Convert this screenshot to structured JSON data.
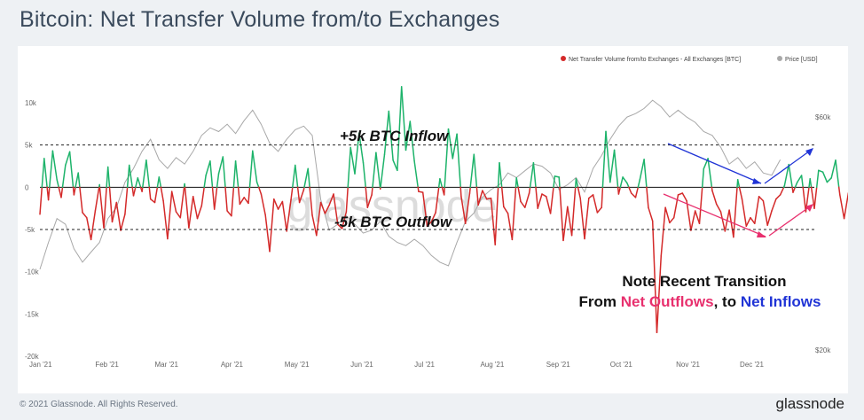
{
  "title": "Bitcoin: Net Transfer Volume from/to Exchanges",
  "footer": {
    "copyright": "© 2021 Glassnode. All Rights Reserved.",
    "brand": "glassnode"
  },
  "watermark": "glassnode",
  "colors": {
    "positive": "#1db36a",
    "negative": "#d42a2a",
    "price": "#a8a8a8",
    "pink": "#e8306e",
    "blue": "#2034d6",
    "text": "#3a4a5c"
  },
  "chart_data": {
    "type": "line",
    "title": "Bitcoin: Net Transfer Volume from/to Exchanges",
    "legend_position": "top-right",
    "legend": [
      {
        "label": "Net Transfer Volume from/to Exchanges - All Exchanges [BTC]",
        "color": "#d42a2a"
      },
      {
        "label": "Price [USD]",
        "color": "#a8a8a8"
      }
    ],
    "x_ticks": [
      "Jan '21",
      "Feb '21",
      "Mar '21",
      "Apr '21",
      "May '21",
      "Jun '21",
      "Jul '21",
      "Aug '21",
      "Sep '21",
      "Oct '21",
      "Nov '21",
      "Dec '21"
    ],
    "y_left": {
      "ticks": [
        "10k",
        "5k",
        "0",
        "-5k",
        "-10k",
        "-15k",
        "-20k"
      ],
      "range": [
        -20000,
        12000
      ]
    },
    "y_right": {
      "ticks": [
        "$60k",
        "$20k"
      ],
      "range": [
        20000,
        72000
      ],
      "scale": "log"
    },
    "reference_lines": [
      {
        "value": 5000,
        "label": "+5k BTC Inflow"
      },
      {
        "value": -5000,
        "label": "-5k BTC Outflow"
      }
    ],
    "annotation": {
      "line1": "Note Recent Transition",
      "line2_prefix": "From ",
      "line2_outflows": "Net Outflows",
      "line2_mid": ", to ",
      "line2_inflows": "Net Inflows"
    },
    "series": [
      {
        "name": "Net Transfer Volume from/to Exchanges - All Exchanges [BTC]",
        "start": "2021-01-01",
        "step_days": 2,
        "values": [
          -3200,
          3400,
          -1500,
          4300,
          900,
          -1200,
          2600,
          4200,
          -900,
          1700,
          -3000,
          -3600,
          -6200,
          -2800,
          300,
          -4800,
          2400,
          -4100,
          -1800,
          -5100,
          -3200,
          2600,
          -1000,
          1100,
          -500,
          3200,
          -1400,
          -1800,
          1200,
          -1600,
          -6100,
          -500,
          -2900,
          -3600,
          400,
          -4800,
          -1100,
          -3700,
          -2200,
          1400,
          3100,
          -2600,
          1600,
          3600,
          -2800,
          -3400,
          3100,
          -2000,
          -1200,
          -1900,
          4300,
          600,
          -800,
          -3300,
          -7600,
          -1400,
          -2600,
          -1700,
          -5200,
          -1500,
          2600,
          -1800,
          -300,
          2200,
          -3300,
          -5700,
          -1800,
          -3100,
          -2100,
          -800,
          -4400,
          -4900,
          -2900,
          4700,
          1600,
          6400,
          2900,
          -2400,
          -900,
          4100,
          -200,
          3900,
          9000,
          3200,
          2000,
          11900,
          4400,
          7800,
          3100,
          -500,
          -600,
          -4600,
          -4100,
          -3000,
          1000,
          -900,
          6900,
          3400,
          6300,
          -1100,
          -4300,
          -700,
          3900,
          -2100,
          -400,
          -1400,
          -1300,
          -6800,
          2900,
          -2300,
          -3100,
          -6200,
          1100,
          -1700,
          -2400,
          -700,
          2900,
          -2500,
          -800,
          -1100,
          -3100,
          1300,
          1200,
          -6300,
          -2300,
          -5700,
          1000,
          -1300,
          -6100,
          -1300,
          -900,
          -3000,
          -2400,
          6600,
          600,
          4400,
          -800,
          1200,
          500,
          -700,
          -1200,
          900,
          3300,
          -2400,
          -4000,
          -17200,
          -8100,
          -2400,
          -4200,
          -3600,
          -900,
          -700,
          -1600,
          -5100,
          -2800,
          -4300,
          2200,
          3400,
          -400,
          -2000,
          -2900,
          -5200,
          -2700,
          -5900,
          900,
          -1400,
          -4600,
          -3600,
          -4300,
          -1100,
          -1600,
          -4500,
          -2800,
          -1400,
          -900,
          200,
          2700,
          -600,
          600,
          1400,
          -2900,
          1000,
          -2500,
          2000,
          1800,
          600,
          1100,
          3200,
          -900,
          -3700,
          -700,
          -1800,
          -500,
          -4200,
          300,
          4200,
          1500,
          2300,
          -3300,
          -2500,
          -600,
          3400,
          -1800,
          -1300,
          -5500,
          -1700,
          -8900,
          -4300,
          -2200,
          2900,
          -100,
          -1800,
          3600,
          -3200,
          2300,
          1900,
          -1300,
          3500,
          -2100,
          3600,
          3300,
          5100
        ]
      },
      {
        "name": "Price [USD]",
        "start": "2021-01-01",
        "step_days": 4,
        "values": [
          30000,
          34000,
          38000,
          37000,
          33000,
          31000,
          32500,
          34000,
          38000,
          40000,
          45000,
          48000,
          52000,
          55000,
          50000,
          48000,
          50500,
          49000,
          52000,
          56000,
          58000,
          57000,
          59000,
          56500,
          60000,
          63000,
          59000,
          54000,
          52000,
          55000,
          57500,
          58500,
          56000,
          41500,
          36000,
          37000,
          38500,
          37000,
          35500,
          36000,
          37500,
          35000,
          34000,
          33500,
          34500,
          33500,
          32000,
          31000,
          30500,
          34000,
          37500,
          39000,
          42000,
          43500,
          44500,
          47000,
          46000,
          47500,
          49000,
          48500,
          47000,
          43500,
          44500,
          46000,
          43000,
          48000,
          51000,
          55000,
          58500,
          61000,
          62000,
          63500,
          66000,
          64000,
          61000,
          63000,
          61000,
          59500,
          57000,
          56000,
          53000,
          49000,
          50500,
          48000,
          49500,
          47000,
          46500,
          50000
        ]
      }
    ]
  }
}
